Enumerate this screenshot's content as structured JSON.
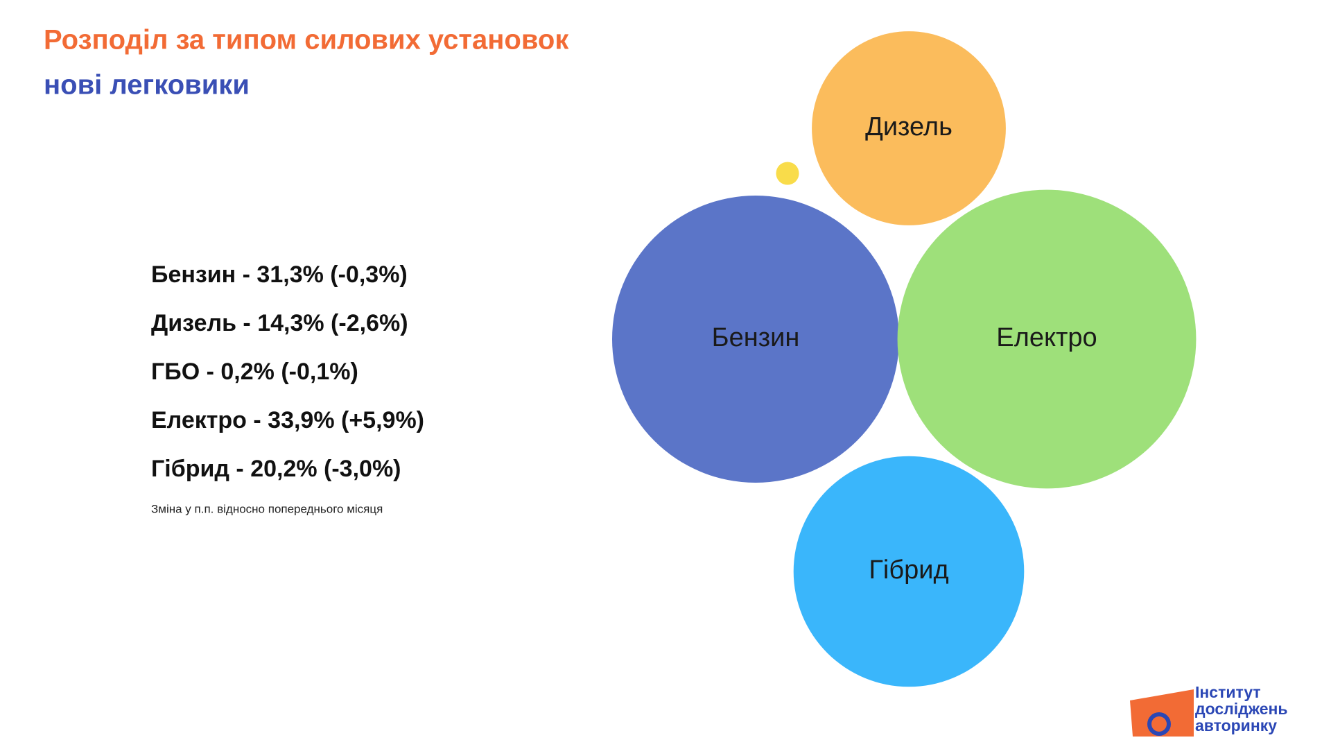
{
  "header": {
    "title": "Розподіл за типом силових установок",
    "subtitle": "нові легковики"
  },
  "summary": {
    "lines": [
      "Бензин - 31,3% (-0,3%)",
      "Дизель - 14,3% (-2,6%)",
      "ГБО - 0,2% (-0,1%)",
      "Електро - 33,9% (+5,9%)",
      "Гібрид - 20,2% (-3,0%)"
    ],
    "note": "Зміна у п.п. відносно попереднього місяця"
  },
  "chart_data": {
    "type": "bubble",
    "categories": [
      "Бензин",
      "Дизель",
      null,
      "Електро",
      "Гібрид"
    ],
    "values": [
      31.3,
      14.3,
      0.2,
      33.9,
      20.2
    ],
    "colors": [
      "#5b75c8",
      "#fbbc5c",
      "#f9dc4a",
      "#9ee07a",
      "#3ab6fb"
    ]
  },
  "logo": {
    "lines": [
      "Інститут",
      "досліджень",
      "авторинку"
    ]
  }
}
